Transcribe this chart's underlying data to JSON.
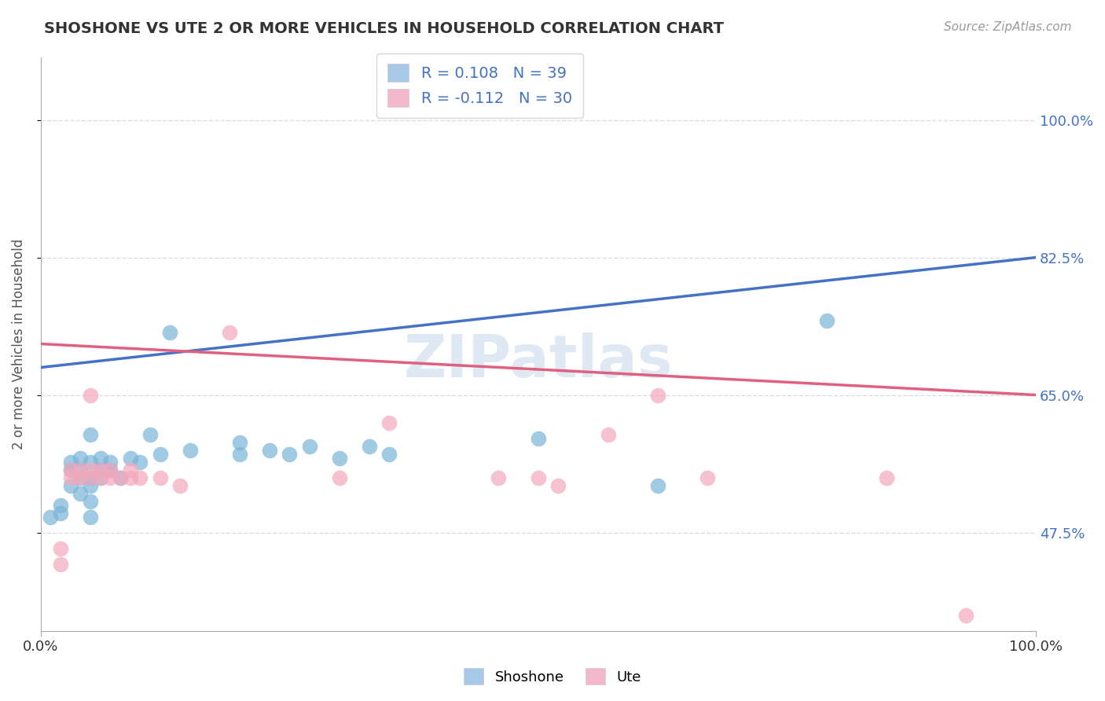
{
  "title": "SHOSHONE VS UTE 2 OR MORE VEHICLES IN HOUSEHOLD CORRELATION CHART",
  "source": "Source: ZipAtlas.com",
  "ylabel": "2 or more Vehicles in Household",
  "xlim": [
    0.0,
    1.0
  ],
  "ylim": [
    0.35,
    1.08
  ],
  "xtick_labels": [
    "0.0%",
    "100.0%"
  ],
  "ytick_labels": [
    "47.5%",
    "65.0%",
    "82.5%",
    "100.0%"
  ],
  "ytick_positions": [
    0.475,
    0.65,
    0.825,
    1.0
  ],
  "legend_entries": [
    {
      "label": "R = 0.108   N = 39"
    },
    {
      "label": "R = -0.112   N = 30"
    }
  ],
  "watermark": "ZIPatlas",
  "shoshone_color": "#7ab4d8",
  "ute_color": "#f4a8bc",
  "shoshone_line_color": "#4472c4",
  "ute_line_color": "#e06080",
  "shoshone_scatter": [
    [
      0.01,
      0.495
    ],
    [
      0.02,
      0.5
    ],
    [
      0.02,
      0.51
    ],
    [
      0.03,
      0.535
    ],
    [
      0.03,
      0.555
    ],
    [
      0.03,
      0.565
    ],
    [
      0.04,
      0.525
    ],
    [
      0.04,
      0.545
    ],
    [
      0.04,
      0.555
    ],
    [
      0.04,
      0.57
    ],
    [
      0.05,
      0.495
    ],
    [
      0.05,
      0.515
    ],
    [
      0.05,
      0.535
    ],
    [
      0.05,
      0.545
    ],
    [
      0.05,
      0.565
    ],
    [
      0.05,
      0.6
    ],
    [
      0.06,
      0.545
    ],
    [
      0.06,
      0.555
    ],
    [
      0.06,
      0.57
    ],
    [
      0.07,
      0.555
    ],
    [
      0.07,
      0.565
    ],
    [
      0.08,
      0.545
    ],
    [
      0.09,
      0.57
    ],
    [
      0.1,
      0.565
    ],
    [
      0.11,
      0.6
    ],
    [
      0.12,
      0.575
    ],
    [
      0.15,
      0.58
    ],
    [
      0.2,
      0.575
    ],
    [
      0.2,
      0.59
    ],
    [
      0.23,
      0.58
    ],
    [
      0.25,
      0.575
    ],
    [
      0.27,
      0.585
    ],
    [
      0.3,
      0.57
    ],
    [
      0.33,
      0.585
    ],
    [
      0.35,
      0.575
    ],
    [
      0.13,
      0.73
    ],
    [
      0.5,
      0.595
    ],
    [
      0.62,
      0.535
    ],
    [
      0.79,
      0.745
    ]
  ],
  "ute_scatter": [
    [
      0.02,
      0.435
    ],
    [
      0.02,
      0.455
    ],
    [
      0.03,
      0.545
    ],
    [
      0.03,
      0.555
    ],
    [
      0.04,
      0.545
    ],
    [
      0.04,
      0.555
    ],
    [
      0.05,
      0.545
    ],
    [
      0.05,
      0.555
    ],
    [
      0.05,
      0.65
    ],
    [
      0.06,
      0.545
    ],
    [
      0.06,
      0.555
    ],
    [
      0.07,
      0.545
    ],
    [
      0.07,
      0.555
    ],
    [
      0.08,
      0.545
    ],
    [
      0.09,
      0.555
    ],
    [
      0.09,
      0.545
    ],
    [
      0.1,
      0.545
    ],
    [
      0.12,
      0.545
    ],
    [
      0.14,
      0.535
    ],
    [
      0.19,
      0.73
    ],
    [
      0.3,
      0.545
    ],
    [
      0.35,
      0.615
    ],
    [
      0.46,
      0.545
    ],
    [
      0.5,
      0.545
    ],
    [
      0.52,
      0.535
    ],
    [
      0.57,
      0.6
    ],
    [
      0.62,
      0.65
    ],
    [
      0.67,
      0.545
    ],
    [
      0.85,
      0.545
    ],
    [
      0.93,
      0.37
    ]
  ],
  "shoshone_line": {
    "x0": 0.0,
    "y0": 0.685,
    "x1": 1.0,
    "y1": 0.825
  },
  "ute_line": {
    "x0": 0.0,
    "y0": 0.715,
    "x1": 1.0,
    "y1": 0.65
  },
  "background_color": "#ffffff",
  "grid_color": "#dddddd",
  "legend_text_color": "#4472c4",
  "shoshone_legend_color": "#a8c8e8",
  "ute_legend_color": "#f4b8cc"
}
